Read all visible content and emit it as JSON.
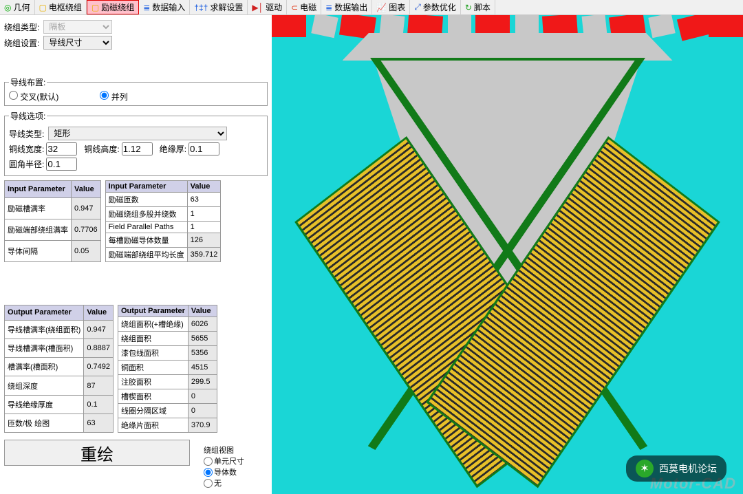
{
  "toolbar": [
    {
      "label": "几何",
      "icon": "◎",
      "color": "#00aa00"
    },
    {
      "label": "电枢绕组",
      "icon": "▢",
      "color": "#e8b000"
    },
    {
      "label": "励磁绕组",
      "icon": "▢",
      "color": "#e8b000",
      "active": true
    },
    {
      "label": "数据输入",
      "icon": "≣",
      "color": "#2060e0"
    },
    {
      "label": "求解设置",
      "icon": "†‡†",
      "color": "#2060e0"
    },
    {
      "label": "驱动",
      "icon": "▶│",
      "color": "#d02020"
    },
    {
      "label": "电磁",
      "icon": "⊂",
      "color": "#e04020"
    },
    {
      "label": "数据输出",
      "icon": "≣",
      "color": "#2060e0"
    },
    {
      "label": "图表",
      "icon": "📈",
      "color": "#d03030"
    },
    {
      "label": "参数优化",
      "icon": "⤢",
      "color": "#3060d0"
    },
    {
      "label": "脚本",
      "icon": "↻",
      "color": "#20a020"
    }
  ],
  "type": {
    "label": "绕组类型:",
    "value": "隔板"
  },
  "setting": {
    "label": "绕组设置:",
    "value": "导线尺寸"
  },
  "layout_group": {
    "legend": "导线布置:",
    "opt1": "交叉(默认)",
    "opt2": "并列",
    "selected": "并列"
  },
  "wire_group": {
    "legend": "导线选项:",
    "type_label": "导线类型:",
    "type_value": "矩形",
    "w_label": "铜线宽度:",
    "w_value": "32",
    "h_label": "铜线高度:",
    "h_value": "1.12",
    "ins_label": "绝缘厚:",
    "ins_value": "0.1",
    "r_label": "圆角半径:",
    "r_value": "0.1"
  },
  "tbl_in_left": {
    "h1": "Input Parameter",
    "h2": "Value",
    "rows": [
      {
        "p": "励磁槽满率",
        "v": "0.947"
      },
      {
        "p": "励磁端部绕组满率",
        "v": "0.7706"
      },
      {
        "p": "导体间隔",
        "v": "0.05"
      }
    ]
  },
  "tbl_in_right": {
    "h1": "Input Parameter",
    "h2": "Value",
    "rows": [
      {
        "p": "励磁匝数",
        "v": "63",
        "w": true
      },
      {
        "p": "励磁绕组多股并绕数",
        "v": "1",
        "w": true
      },
      {
        "p": "Field Parallel Paths",
        "v": "1",
        "w": true
      },
      {
        "p": "每槽励磁导体数量",
        "v": "126"
      },
      {
        "p": "励磁端部绕组平均长度",
        "v": "359.712"
      }
    ]
  },
  "tbl_out_left": {
    "h1": "Output Parameter",
    "h2": "Value",
    "rows": [
      {
        "p": "导线槽满率(绕组面积)",
        "v": "0.947"
      },
      {
        "p": "导线槽满率(槽面积)",
        "v": "0.8887"
      },
      {
        "p": "槽满率(槽面积)",
        "v": "0.7492"
      },
      {
        "p": "绕组深度",
        "v": "87"
      },
      {
        "p": "导线绝缘厚度",
        "v": "0.1"
      },
      {
        "p": "匝数/极 绘图",
        "v": "63"
      }
    ]
  },
  "tbl_out_right": {
    "h1": "Output Parameter",
    "h2": "Value",
    "rows": [
      {
        "p": "绕组面积(+槽绝缘)",
        "v": "6026"
      },
      {
        "p": "绕组面积",
        "v": "5655"
      },
      {
        "p": "漆包线面积",
        "v": "5356"
      },
      {
        "p": "铜面积",
        "v": "4515"
      },
      {
        "p": "注胶面积",
        "v": "299.5"
      },
      {
        "p": "槽楔面积",
        "v": "0"
      },
      {
        "p": "线圈分隔区域",
        "v": "0"
      },
      {
        "p": "绝缘片面积",
        "v": "370.9"
      }
    ]
  },
  "redraw_label": "重绘",
  "view": {
    "legend": "绕组视图",
    "o1": "单元尺寸",
    "o2": "导体数",
    "o3": "无"
  },
  "badge_text": "西莫电机论坛",
  "watermark": "Motor-CAD",
  "canvas_colors": {
    "bg": "#1ad6d6",
    "red": "#f01818",
    "grey": "#c8c8c8",
    "green": "#117a18",
    "coil1": "#e8c028",
    "coil2": "#2a2a2a"
  }
}
